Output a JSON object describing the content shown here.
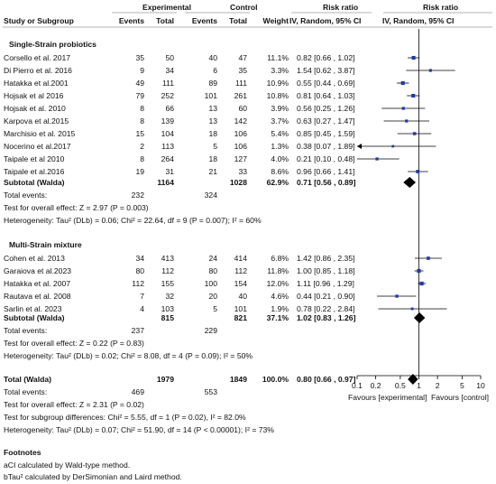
{
  "header": {
    "group1": "Experimental",
    "group2": "Control",
    "rr1": "Risk ratio",
    "rr2": "Risk ratio",
    "col_study": "Study or Subgroup",
    "col_events1": "Events",
    "col_total1": "Total",
    "col_events2": "Events",
    "col_total2": "Total",
    "col_weight": "Weight",
    "col_rr1": "IV, Random, 95% CI",
    "col_rr2": "IV, Random, 95% CI"
  },
  "subgroups": [
    {
      "title": "Single-Strain probiotics",
      "studies": [
        {
          "name": "Corsello et al. 2017",
          "e1": "35",
          "t1": "50",
          "e2": "40",
          "t2": "47",
          "weight": "11.1%",
          "ci": "0.82 [0.66 , 1.02]"
        },
        {
          "name": "Di Pierro et al. 2016",
          "e1": "9",
          "t1": "34",
          "e2": "6",
          "t2": "35",
          "weight": "3.3%",
          "ci": "1.54 [0.62 , 3.87]"
        },
        {
          "name": "Hatakka et al.2001",
          "e1": "49",
          "t1": "111",
          "e2": "89",
          "t2": "111",
          "weight": "10.9%",
          "ci": "0.55 [0.44 , 0.69]"
        },
        {
          "name": "Hojsak et al 2016",
          "e1": "79",
          "t1": "252",
          "e2": "101",
          "t2": "261",
          "weight": "10.8%",
          "ci": "0.81 [0.64 , 1.03]"
        },
        {
          "name": "Hojsak et al. 2010",
          "e1": "8",
          "t1": "66",
          "e2": "13",
          "t2": "60",
          "weight": "3.9%",
          "ci": "0.56 [0.25 , 1.26]"
        },
        {
          "name": "Karpova et al.2015",
          "e1": "8",
          "t1": "139",
          "e2": "13",
          "t2": "142",
          "weight": "3.7%",
          "ci": "0.63 [0.27 , 1.47]"
        },
        {
          "name": "Marchisio et al. 2015",
          "e1": "15",
          "t1": "104",
          "e2": "18",
          "t2": "106",
          "weight": "5.4%",
          "ci": "0.85 [0.45 , 1.59]"
        },
        {
          "name": "Nocerino et al.2017",
          "e1": "2",
          "t1": "113",
          "e2": "5",
          "t2": "106",
          "weight": "1.3%",
          "ci": "0.38 [0.07 , 1.89]"
        },
        {
          "name": "Taipale et al 2010",
          "e1": "8",
          "t1": "264",
          "e2": "18",
          "t2": "127",
          "weight": "4.0%",
          "ci": "0.21 [0.10 , 0.48]"
        },
        {
          "name": "Taipale et al.2016",
          "e1": "19",
          "t1": "31",
          "e2": "21",
          "t2": "33",
          "weight": "8.6%",
          "ci": "0.96 [0.66 , 1.41]"
        }
      ],
      "subtotal": {
        "label": "Subtotal (Walda)",
        "t1": "1164",
        "t2": "1028",
        "weight": "62.9%",
        "ci": "0.71 [0.56 , 0.89]"
      },
      "events_label": "Total events:",
      "events1": "232",
      "events2": "324",
      "overall": "Test for overall effect: Z = 2.97 (P = 0.003)",
      "het": "Heterogeneity: Tau² (DLb) = 0.06; Chi² = 22.64, df = 9 (P = 0.007); I² = 60%"
    },
    {
      "title": "Multi-Strain mixture",
      "studies": [
        {
          "name": "Cohen et al. 2013",
          "e1": "34",
          "t1": "413",
          "e2": "24",
          "t2": "414",
          "weight": "6.8%",
          "ci": "1.42 [0.86 , 2.35]"
        },
        {
          "name": "Garaiova et al.2023",
          "e1": "80",
          "t1": "112",
          "e2": "80",
          "t2": "112",
          "weight": "11.8%",
          "ci": "1.00 [0.85 , 1.18]"
        },
        {
          "name": "Hatakka et al. 2007",
          "e1": "112",
          "t1": "155",
          "e2": "100",
          "t2": "154",
          "weight": "12.0%",
          "ci": "1.11 [0.96 , 1.29]"
        },
        {
          "name": "Rautava et al. 2008",
          "e1": "7",
          "t1": "32",
          "e2": "20",
          "t2": "40",
          "weight": "4.6%",
          "ci": "0.44 [0.21 , 0.90]"
        },
        {
          "name": "Sarlin et al. 2023",
          "e1": "4",
          "t1": "103",
          "e2": "5",
          "t2": "101",
          "weight": "1.9%",
          "ci": "0.78 [0.22 , 2.84]"
        }
      ],
      "subtotal": {
        "label": "Subtotal (Walda)",
        "t1": "815",
        "t2": "821",
        "weight": "37.1%",
        "ci": "1.02 [0.83 , 1.26]"
      },
      "events_label": "Total events:",
      "events1": "237",
      "events2": "229",
      "overall": "Test for overall effect: Z = 0.22 (P = 0.83)",
      "het": "Heterogeneity: Tau² (DLb) = 0.02; Chi² = 8.08, df = 4 (P = 0.09); I² = 50%"
    }
  ],
  "total": {
    "label": "Total (Walda)",
    "t1": "1979",
    "t2": "1849",
    "weight": "100.0%",
    "ci": "0.80 [0.66 , 0.97]",
    "events_label": "Total events:",
    "events1": "469",
    "events2": "553",
    "overall": "Test for overall effect: Z = 2.31 (P = 0.02)",
    "subgroup_diff": "Test for subgroup differences: Chi² = 5.55, df = 1 (P = 0.02), I² = 82.0%",
    "het": "Heterogeneity: Tau² (DLb) = 0.07; Chi² = 51.90, df = 14 (P < 0.00001); I² = 73%"
  },
  "axis": {
    "ticks": [
      "0.1",
      "0.2",
      "0.5",
      "1",
      "2",
      "5",
      "10"
    ],
    "favours_left": "Favours [experimental]",
    "favours_right": "Favours [control]"
  },
  "footnotes": {
    "title": "Footnotes",
    "a": "aCI calculated by Wald-type method.",
    "b": "bTau² calculated by DerSimonian and Laird method."
  },
  "colors": {
    "point": "#1f3aa8",
    "line": "#000000",
    "rule": "#9a9a9a"
  },
  "chart_data": {
    "type": "forest",
    "scale": "log",
    "xlim": [
      0.1,
      10
    ],
    "x_ticks": [
      0.1,
      0.2,
      0.5,
      1,
      2,
      5,
      10
    ],
    "null_line": 1,
    "studies": [
      {
        "rr": 0.82,
        "lo": 0.66,
        "hi": 1.02,
        "w": 11.1
      },
      {
        "rr": 1.54,
        "lo": 0.62,
        "hi": 3.87,
        "w": 3.3
      },
      {
        "rr": 0.55,
        "lo": 0.44,
        "hi": 0.69,
        "w": 10.9
      },
      {
        "rr": 0.81,
        "lo": 0.64,
        "hi": 1.03,
        "w": 10.8
      },
      {
        "rr": 0.56,
        "lo": 0.25,
        "hi": 1.26,
        "w": 3.9
      },
      {
        "rr": 0.63,
        "lo": 0.27,
        "hi": 1.47,
        "w": 3.7
      },
      {
        "rr": 0.85,
        "lo": 0.45,
        "hi": 1.59,
        "w": 5.4
      },
      {
        "rr": 0.38,
        "lo": 0.07,
        "hi": 1.89,
        "w": 1.3
      },
      {
        "rr": 0.21,
        "lo": 0.1,
        "hi": 0.48,
        "w": 4.0
      },
      {
        "rr": 0.96,
        "lo": 0.66,
        "hi": 1.41,
        "w": 8.6
      },
      {
        "rr": 1.42,
        "lo": 0.86,
        "hi": 2.35,
        "w": 6.8
      },
      {
        "rr": 1.0,
        "lo": 0.85,
        "hi": 1.18,
        "w": 11.8
      },
      {
        "rr": 1.11,
        "lo": 0.96,
        "hi": 1.29,
        "w": 12.0
      },
      {
        "rr": 0.44,
        "lo": 0.21,
        "hi": 0.9,
        "w": 4.6
      },
      {
        "rr": 0.78,
        "lo": 0.22,
        "hi": 2.84,
        "w": 1.9
      }
    ],
    "subtotals": [
      {
        "rr": 0.71,
        "lo": 0.56,
        "hi": 0.89
      },
      {
        "rr": 1.02,
        "lo": 0.83,
        "hi": 1.26
      }
    ],
    "overall": {
      "rr": 0.8,
      "lo": 0.66,
      "hi": 0.97
    }
  }
}
